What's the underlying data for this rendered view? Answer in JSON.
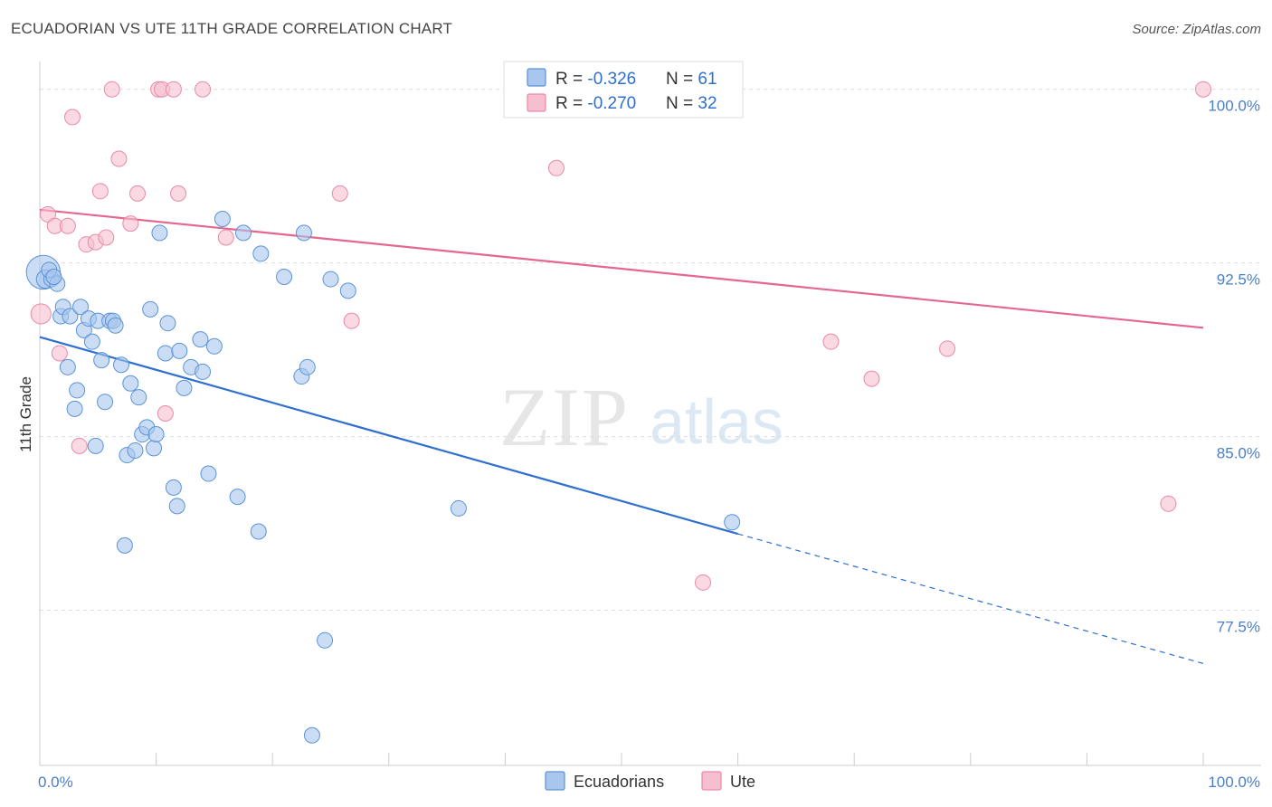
{
  "header": {
    "title": "ECUADORIAN VS UTE 11TH GRADE CORRELATION CHART",
    "source": "Source: ZipAtlas.com"
  },
  "watermark": {
    "zip": "ZIP",
    "atlas": "atlas"
  },
  "colors": {
    "blue": "#5b93d6",
    "blue_fill": "#a9c6ee",
    "blue_line": "#2f6fce",
    "pink": "#e98aa8",
    "pink_fill": "#f6bfd0",
    "pink_line": "#e4678f",
    "tick_text": "#4a7fc9",
    "grid": "#dddddd"
  },
  "legend": {
    "rows": [
      {
        "r_label": "R = ",
        "r_value": "-0.326",
        "n_label": "N = ",
        "n_value": "61",
        "color": "blue"
      },
      {
        "r_label": "R = ",
        "r_value": "-0.270",
        "n_label": "N = ",
        "n_value": "32",
        "color": "pink"
      }
    ]
  },
  "bottom_legend": [
    {
      "label": "Ecuadorians",
      "color": "blue"
    },
    {
      "label": "Ute",
      "color": "pink"
    }
  ],
  "chart_data": {
    "type": "scatter",
    "title": "ECUADORIAN VS UTE 11TH GRADE CORRELATION CHART",
    "xlabel": "",
    "ylabel": "11th Grade",
    "xlim": [
      0,
      100
    ],
    "ylim": [
      70.8,
      101.2
    ],
    "x_tick_labels": [
      {
        "value": 0,
        "label": "0.0%"
      },
      {
        "value": 100,
        "label": "100.0%"
      }
    ],
    "y_ticks": [
      {
        "value": 100,
        "label": "100.0%"
      },
      {
        "value": 92.5,
        "label": "92.5%"
      },
      {
        "value": 85,
        "label": "85.0%"
      },
      {
        "value": 77.5,
        "label": "77.5%"
      }
    ],
    "grid": true,
    "legend_position": "top-center",
    "series": [
      {
        "name": "Ecuadorians",
        "color": "blue",
        "trend": {
          "x0": 0,
          "y0": 89.3,
          "x1": 60,
          "y1": 80.8,
          "dashed_to_x": 100,
          "dashed_to_y": 75.2
        },
        "points": [
          [
            0.3,
            92.1,
            2.2
          ],
          [
            0.5,
            91.8,
            1.2
          ],
          [
            1.0,
            91.8,
            1.0
          ],
          [
            1.5,
            91.6,
            1.0
          ],
          [
            1.8,
            90.2,
            1.0
          ],
          [
            2.0,
            90.6,
            1.0
          ],
          [
            2.4,
            88.0,
            1.0
          ],
          [
            2.6,
            90.2,
            1.0
          ],
          [
            3.0,
            86.2,
            1.0
          ],
          [
            3.2,
            87.0,
            1.0
          ],
          [
            3.5,
            90.6,
            1.0
          ],
          [
            3.8,
            89.6,
            1.0
          ],
          [
            4.2,
            90.1,
            1.0
          ],
          [
            4.5,
            89.1,
            1.0
          ],
          [
            4.8,
            84.6,
            1.0
          ],
          [
            5.0,
            90.0,
            1.0
          ],
          [
            5.3,
            88.3,
            1.0
          ],
          [
            5.6,
            86.5,
            1.0
          ],
          [
            6.0,
            90.0,
            1.0
          ],
          [
            6.3,
            90.0,
            1.0
          ],
          [
            6.5,
            89.8,
            1.0
          ],
          [
            7.0,
            88.1,
            1.0
          ],
          [
            7.3,
            80.3,
            1.0
          ],
          [
            7.5,
            84.2,
            1.0
          ],
          [
            7.8,
            87.3,
            1.0
          ],
          [
            8.2,
            84.4,
            1.0
          ],
          [
            8.5,
            86.7,
            1.0
          ],
          [
            8.8,
            85.1,
            1.0
          ],
          [
            9.2,
            85.4,
            1.0
          ],
          [
            9.5,
            90.5,
            1.0
          ],
          [
            9.8,
            84.5,
            1.0
          ],
          [
            10.0,
            85.1,
            1.0
          ],
          [
            10.3,
            93.8,
            1.0
          ],
          [
            10.8,
            88.6,
            1.0
          ],
          [
            11.0,
            89.9,
            1.0
          ],
          [
            11.5,
            82.8,
            1.0
          ],
          [
            11.8,
            82.0,
            1.0
          ],
          [
            12.0,
            88.7,
            1.0
          ],
          [
            12.4,
            87.1,
            1.0
          ],
          [
            13.0,
            88.0,
            1.0
          ],
          [
            13.8,
            89.2,
            1.0
          ],
          [
            14.0,
            87.8,
            1.0
          ],
          [
            14.5,
            83.4,
            1.0
          ],
          [
            15.0,
            88.9,
            1.0
          ],
          [
            15.7,
            94.4,
            1.0
          ],
          [
            17.0,
            82.4,
            1.0
          ],
          [
            17.5,
            93.8,
            1.0
          ],
          [
            18.8,
            80.9,
            1.0
          ],
          [
            19.0,
            92.9,
            1.0
          ],
          [
            21.0,
            91.9,
            1.0
          ],
          [
            22.5,
            87.6,
            1.0
          ],
          [
            22.7,
            93.8,
            1.0
          ],
          [
            23.0,
            88.0,
            1.0
          ],
          [
            23.4,
            72.1,
            1.0
          ],
          [
            24.5,
            76.2,
            1.0
          ],
          [
            25.0,
            91.8,
            1.0
          ],
          [
            26.5,
            91.3,
            1.0
          ],
          [
            36.0,
            81.9,
            1.0
          ],
          [
            59.5,
            81.3,
            1.0
          ],
          [
            0.8,
            92.2,
            1.0
          ],
          [
            1.2,
            91.9,
            1.0
          ]
        ]
      },
      {
        "name": "Ute",
        "color": "pink",
        "trend": {
          "x0": 0,
          "y0": 94.8,
          "x1": 100,
          "y1": 89.7
        },
        "points": [
          [
            0.1,
            90.3,
            1.3
          ],
          [
            0.7,
            94.6,
            1.0
          ],
          [
            1.3,
            94.1,
            1.0
          ],
          [
            1.7,
            88.6,
            1.0
          ],
          [
            2.4,
            94.1,
            1.0
          ],
          [
            2.8,
            98.8,
            1.0
          ],
          [
            3.4,
            84.6,
            1.0
          ],
          [
            4.0,
            93.3,
            1.0
          ],
          [
            4.8,
            93.4,
            1.0
          ],
          [
            5.2,
            95.6,
            1.0
          ],
          [
            5.7,
            93.6,
            1.0
          ],
          [
            6.2,
            100.0,
            1.0
          ],
          [
            6.8,
            97.0,
            1.0
          ],
          [
            7.8,
            94.2,
            1.0
          ],
          [
            8.4,
            95.5,
            1.0
          ],
          [
            10.2,
            100.0,
            1.0
          ],
          [
            10.5,
            100.0,
            1.0
          ],
          [
            10.8,
            86.0,
            1.0
          ],
          [
            11.5,
            100.0,
            1.0
          ],
          [
            11.9,
            95.5,
            1.0
          ],
          [
            14.0,
            100.0,
            1.0
          ],
          [
            16.0,
            93.6,
            1.0
          ],
          [
            25.8,
            95.5,
            1.0
          ],
          [
            26.8,
            90.0,
            1.0
          ],
          [
            44.4,
            96.6,
            1.0
          ],
          [
            52.0,
            100.0,
            1.0
          ],
          [
            57.0,
            78.7,
            1.0
          ],
          [
            68.0,
            89.1,
            1.0
          ],
          [
            71.5,
            87.5,
            1.0
          ],
          [
            78.0,
            88.8,
            1.0
          ],
          [
            97.0,
            82.1,
            1.0
          ],
          [
            100.0,
            100.0,
            1.0
          ]
        ]
      }
    ]
  }
}
